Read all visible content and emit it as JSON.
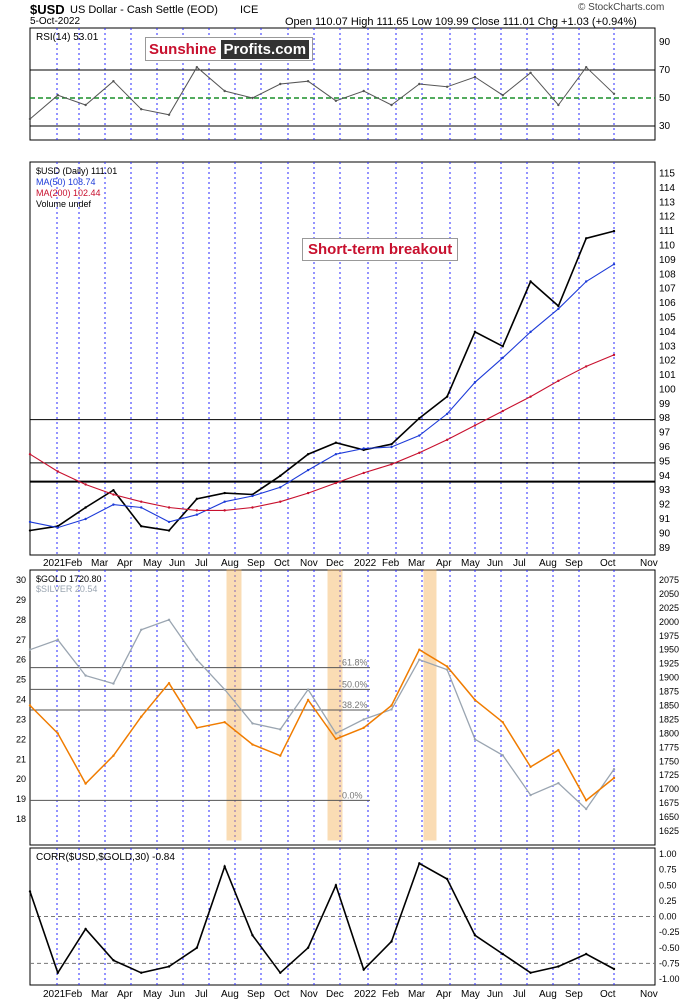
{
  "header": {
    "ticker": "$USD",
    "name": "US Dollar - Cash Settle (EOD)",
    "exchange": "ICE",
    "date": "5-Oct-2022",
    "ohlc": "Open 110.07  High 111.65  Low 109.99  Close 111.01  Chg +1.03 (+0.94%)",
    "watermark": "© StockCharts.com"
  },
  "logo": {
    "part1": "Sunshine",
    "part2": "Profits.com"
  },
  "annotation": "Short-term breakout",
  "colors": {
    "usd": "#000000",
    "ma50": "#1d3bd8",
    "ma200": "#c8102e",
    "gold": "#f07c00",
    "silver": "#9aa5b1",
    "rsi": "#555555",
    "corr": "#000000",
    "grid": "#2a2aff",
    "highlight": "#f5b35a"
  },
  "chart_data": [
    {
      "type": "line",
      "title": "RSI(14) 53.01",
      "y_ticks": [
        90,
        70,
        50,
        30
      ],
      "ylim": [
        20,
        100
      ],
      "reference_lines": [
        70,
        50,
        30
      ],
      "x": [
        "2021-01",
        "2021-02",
        "2021-03",
        "2021-04",
        "2021-05",
        "2021-06",
        "2021-07",
        "2021-08",
        "2021-09",
        "2021-10",
        "2021-11",
        "2021-12",
        "2022-01",
        "2022-02",
        "2022-03",
        "2022-04",
        "2022-05",
        "2022-06",
        "2022-07",
        "2022-08",
        "2022-09",
        "2022-10"
      ],
      "series": [
        {
          "name": "RSI(14)",
          "values": [
            35,
            52,
            45,
            62,
            42,
            38,
            72,
            55,
            50,
            60,
            62,
            48,
            55,
            45,
            60,
            58,
            65,
            52,
            68,
            45,
            72,
            53
          ]
        }
      ]
    },
    {
      "type": "line",
      "title": "$USD (Daily) 111.01",
      "legend": [
        "$USD (Daily) 111.01",
        "MA(50) 108.74",
        "MA(200) 102.44",
        "Volume undef"
      ],
      "y_ticks": [
        115,
        114,
        113,
        112,
        111,
        110,
        109,
        108,
        107,
        106,
        105,
        104,
        103,
        102,
        101,
        100,
        99,
        98,
        97,
        96,
        95,
        94,
        93,
        92,
        91,
        90,
        89
      ],
      "ylim": [
        88.5,
        115.8
      ],
      "x_labels": [
        "2021",
        "Feb",
        "Mar",
        "Apr",
        "May",
        "Jun",
        "Jul",
        "Aug",
        "Sep",
        "Oct",
        "Nov",
        "Dec",
        "2022",
        "Feb",
        "Mar",
        "Apr",
        "May",
        "Jun",
        "Jul",
        "Aug",
        "Sep",
        "Oct",
        "Nov"
      ],
      "x": [
        "2021-01",
        "2021-02",
        "2021-03",
        "2021-04",
        "2021-05",
        "2021-06",
        "2021-07",
        "2021-08",
        "2021-09",
        "2021-10",
        "2021-11",
        "2021-12",
        "2022-01",
        "2022-02",
        "2022-03",
        "2022-04",
        "2022-05",
        "2022-06",
        "2022-07",
        "2022-08",
        "2022-09",
        "2022-10"
      ],
      "series": [
        {
          "name": "$USD",
          "values": [
            90.2,
            90.5,
            91.8,
            93.0,
            90.5,
            90.2,
            92.4,
            92.8,
            92.7,
            94.0,
            95.5,
            96.3,
            95.8,
            96.2,
            98.0,
            99.5,
            104.0,
            103.0,
            107.5,
            105.8,
            110.5,
            111.0
          ]
        },
        {
          "name": "MA(50)",
          "values": [
            90.8,
            90.4,
            91.0,
            92.0,
            91.8,
            90.8,
            91.3,
            92.2,
            92.6,
            93.2,
            94.4,
            95.5,
            95.9,
            96.0,
            96.8,
            98.3,
            100.5,
            102.2,
            104.0,
            105.6,
            107.5,
            108.7
          ]
        },
        {
          "name": "MA(200)",
          "values": [
            95.5,
            94.3,
            93.4,
            92.7,
            92.2,
            91.8,
            91.6,
            91.6,
            91.8,
            92.2,
            92.8,
            93.5,
            94.2,
            94.8,
            95.6,
            96.5,
            97.5,
            98.5,
            99.5,
            100.6,
            101.6,
            102.4
          ]
        }
      ],
      "horizontal_lines": [
        97.9,
        94.9,
        93.6
      ]
    },
    {
      "type": "line",
      "title": "$GOLD 1720.80",
      "legend": [
        "$GOLD 1720.80",
        "$SILVER 20.54"
      ],
      "y_ticks_left": [
        30,
        29,
        28,
        27,
        26,
        25,
        24,
        23,
        22,
        21,
        20,
        19,
        18
      ],
      "y_ticks_right": [
        2075,
        2050,
        2025,
        2000,
        1975,
        1950,
        1925,
        1900,
        1875,
        1850,
        1825,
        1800,
        1775,
        1750,
        1725,
        1700,
        1675,
        1650,
        1625
      ],
      "fibonacci": [
        {
          "label": "61.8%",
          "value": 1918
        },
        {
          "label": "50.0%",
          "value": 1879
        },
        {
          "label": "38.2%",
          "value": 1842
        },
        {
          "label": "0.0%",
          "value": 1680
        }
      ],
      "x": [
        "2021-01",
        "2021-02",
        "2021-03",
        "2021-04",
        "2021-05",
        "2021-06",
        "2021-07",
        "2021-08",
        "2021-09",
        "2021-10",
        "2021-11",
        "2021-12",
        "2022-01",
        "2022-02",
        "2022-03",
        "2022-04",
        "2022-05",
        "2022-06",
        "2022-07",
        "2022-08",
        "2022-09",
        "2022-10"
      ],
      "series": [
        {
          "name": "$GOLD",
          "values": [
            1850,
            1800,
            1710,
            1760,
            1830,
            1890,
            1810,
            1820,
            1780,
            1760,
            1860,
            1790,
            1810,
            1850,
            1950,
            1920,
            1860,
            1820,
            1740,
            1770,
            1680,
            1720
          ]
        },
        {
          "name": "$SILVER",
          "values": [
            26.5,
            27.0,
            25.2,
            24.8,
            27.5,
            28.0,
            26.0,
            24.5,
            22.8,
            22.5,
            24.5,
            22.3,
            23.0,
            23.5,
            26.0,
            25.5,
            22.0,
            21.2,
            19.2,
            19.8,
            18.5,
            20.5
          ]
        }
      ]
    },
    {
      "type": "line",
      "title": "CORR($USD,$GOLD,30) -0.84",
      "y_ticks": [
        1.0,
        0.75,
        0.5,
        0.25,
        0.0,
        -0.25,
        -0.5,
        -0.75,
        -1.0
      ],
      "ylim": [
        -1,
        1
      ],
      "x_labels": [
        "2021",
        "Feb",
        "Mar",
        "Apr",
        "May",
        "Jun",
        "Jul",
        "Aug",
        "Sep",
        "Oct",
        "Nov",
        "Dec",
        "2022",
        "Feb",
        "Mar",
        "Apr",
        "May",
        "Jun",
        "Jul",
        "Aug",
        "Sep",
        "Oct",
        "Nov"
      ],
      "x": [
        "2021-01",
        "2021-02",
        "2021-03",
        "2021-04",
        "2021-05",
        "2021-06",
        "2021-07",
        "2021-08",
        "2021-09",
        "2021-10",
        "2021-11",
        "2021-12",
        "2022-01",
        "2022-02",
        "2022-03",
        "2022-04",
        "2022-05",
        "2022-06",
        "2022-07",
        "2022-08",
        "2022-09",
        "2022-10"
      ],
      "series": [
        {
          "name": "CORR",
          "values": [
            0.4,
            -0.9,
            -0.2,
            -0.7,
            -0.9,
            -0.8,
            -0.5,
            0.8,
            -0.3,
            -0.9,
            -0.5,
            0.5,
            -0.85,
            -0.4,
            0.85,
            0.6,
            -0.3,
            -0.6,
            -0.9,
            -0.8,
            -0.6,
            -0.84
          ]
        }
      ]
    }
  ]
}
